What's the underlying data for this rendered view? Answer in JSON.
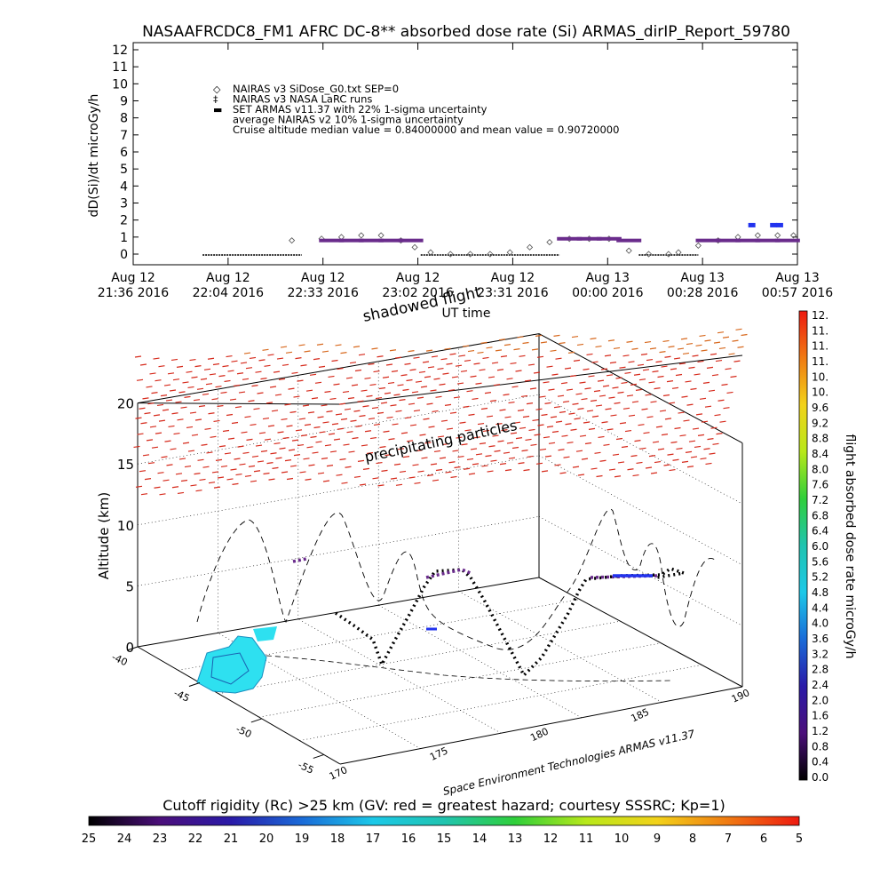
{
  "title": "NASAAFRCDC8_FM1 AFRC DC-8** absorbed dose rate (Si) ARMAS_dirIP_Report_59780",
  "chart_data": [
    {
      "type": "scatter",
      "ylabel": "dD(Si)/dt microGy/h",
      "xlabel": "UT time",
      "ylim": [
        0,
        12
      ],
      "yticks": [
        "0",
        "1",
        "2",
        "3",
        "4",
        "5",
        "6",
        "7",
        "8",
        "9",
        "10",
        "11",
        "12"
      ],
      "xticks": [
        {
          "date": "Aug 12",
          "time": "21:36 2016"
        },
        {
          "date": "Aug 12",
          "time": "22:04 2016"
        },
        {
          "date": "Aug 12",
          "time": "22:33 2016"
        },
        {
          "date": "Aug 12",
          "time": "23:02 2016"
        },
        {
          "date": "Aug 12",
          "time": "23:31 2016"
        },
        {
          "date": "Aug 13",
          "time": "00:00 2016"
        },
        {
          "date": "Aug 13",
          "time": "00:28 2016"
        },
        {
          "date": "Aug 13",
          "time": "00:57 2016"
        }
      ],
      "legend": [
        {
          "symbol": "◇",
          "text": "NAIRAS v3 SiDose_G0.txt SEP=0"
        },
        {
          "symbol": "‡",
          "text": "NAIRAS v3 NASA LaRC runs"
        },
        {
          "symbol": "▬",
          "text": "SET ARMAS v11.37 with 22% 1-sigma uncertainty",
          "color": "#2233ee"
        },
        {
          "symbol": "",
          "text": "average NAIRAS v2 10% 1-sigma uncertainty"
        },
        {
          "symbol": "",
          "text": "Cruise altitude median value = 0.84000000 and mean value = 0.90720000"
        }
      ],
      "series": [
        {
          "name": "NAIRAS v3 SiDose_G0.txt SEP=0",
          "color": "#555555",
          "x": [
            22.4,
            22.55,
            22.65,
            22.75,
            22.85,
            22.95,
            23.02,
            23.1,
            23.2,
            23.3,
            23.4,
            23.5,
            23.6,
            23.7,
            23.8,
            23.9,
            24.0,
            24.1,
            24.2,
            24.3,
            24.35,
            24.45,
            24.55,
            24.65,
            24.75,
            24.85,
            24.93
          ],
          "y": [
            0.8,
            0.9,
            1.0,
            1.1,
            1.1,
            0.8,
            0.4,
            0.1,
            0.0,
            0.0,
            0.0,
            0.1,
            0.4,
            0.7,
            0.9,
            0.9,
            0.9,
            0.2,
            0.0,
            0.0,
            0.1,
            0.5,
            0.8,
            1.0,
            1.1,
            1.1,
            1.1
          ]
        },
        {
          "name": "SET ARMAS v11.37 with 22% 1-sigma uncertainty",
          "color": "#6a2c8c",
          "x": [
            22.6,
            22.7,
            22.8,
            22.9,
            23.0,
            23.8,
            23.9,
            24.0,
            24.1,
            24.5,
            24.6,
            24.7,
            24.8,
            24.9
          ],
          "y": [
            0.8,
            0.8,
            0.8,
            0.8,
            0.8,
            0.9,
            0.9,
            0.9,
            0.8,
            0.8,
            0.8,
            0.8,
            0.8,
            0.8
          ]
        },
        {
          "name": "ARMAS enhanced",
          "color": "#2233ee",
          "x": [
            24.72,
            24.83,
            24.86
          ],
          "y": [
            1.7,
            1.7,
            1.7
          ]
        }
      ]
    },
    {
      "type": "scatter",
      "zlabel": "Altitude (km)",
      "zticks": [
        "0",
        "5",
        "10",
        "15",
        "20"
      ],
      "lat_ticks": [
        "-40",
        "-45",
        "-50",
        "-55"
      ],
      "lon_ticks": [
        "170",
        "175",
        "180",
        "185",
        "190"
      ],
      "annotations": [
        "shadowed flight",
        "precipitating particles",
        "Space Environment Technologies ARMAS v11.37"
      ],
      "colorbar_label": "flight absorbed dose rate microGy/h",
      "colorbar_ticks": [
        "0.0",
        "0.4",
        "0.8",
        "1.2",
        "1.6",
        "2.0",
        "2.4",
        "2.8",
        "3.2",
        "3.6",
        "4.0",
        "4.4",
        "4.8",
        "5.2",
        "5.6",
        "6.0",
        "6.4",
        "6.8",
        "7.2",
        "7.6",
        "8.0",
        "8.4",
        "8.8",
        "9.2",
        "9.6",
        "10.",
        "10.",
        "11.",
        "11.",
        "11.",
        "12."
      ]
    },
    {
      "type": "heatmap",
      "title": "Cutoff rigidity (Rc) >25 km (GV: red = greatest hazard; courtesy SSSRC; Kp=1)",
      "ticks": [
        "25",
        "24",
        "23",
        "22",
        "21",
        "20",
        "19",
        "18",
        "17",
        "16",
        "15",
        "14",
        "13",
        "12",
        "11",
        "10",
        "9",
        "8",
        "7",
        "6",
        "5"
      ]
    }
  ]
}
